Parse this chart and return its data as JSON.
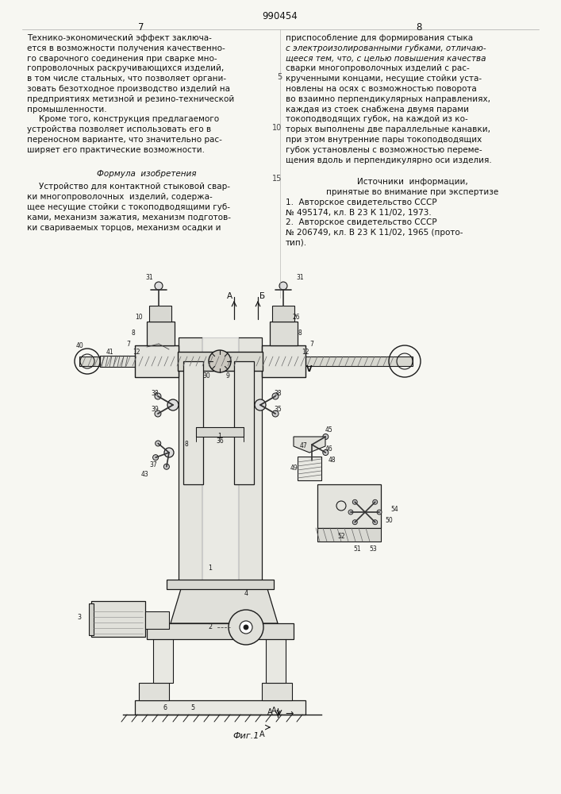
{
  "bg": "#f7f7f2",
  "line_color": "#1a1a1a",
  "page_num": "990454",
  "pg_left": "7",
  "pg_right": "8"
}
